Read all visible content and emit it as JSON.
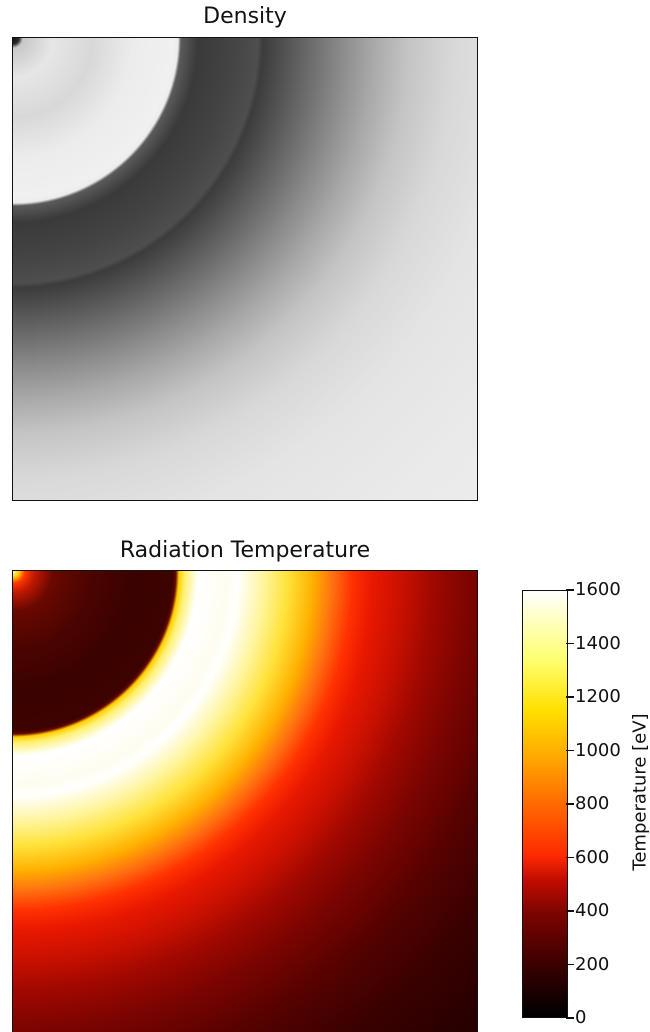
{
  "chart_data": [
    {
      "type": "heatmap",
      "title": "Density",
      "colormap": "gray",
      "grid": false,
      "description_colors": [
        "#111111",
        "#f0f0f0"
      ]
    },
    {
      "type": "heatmap",
      "title": "Radiation Temperature",
      "colormap": "hot",
      "grid": false,
      "colorbar": {
        "label": "Temperature [eV]",
        "range": [
          0,
          1600
        ],
        "ticks": [
          0,
          200,
          400,
          600,
          800,
          1000,
          1200,
          1400,
          1600
        ],
        "tick_labels": [
          "0",
          "200",
          "400",
          "600",
          "800",
          "1000",
          "1200",
          "1400",
          "1600"
        ],
        "position": "right"
      }
    }
  ]
}
